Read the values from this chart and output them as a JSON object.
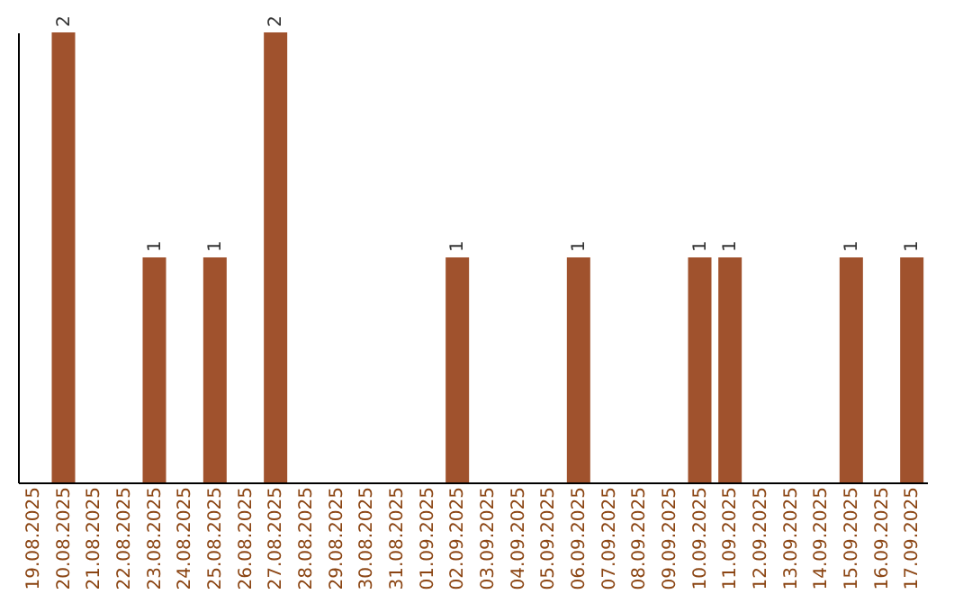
{
  "chart_data": {
    "type": "bar",
    "categories": [
      "19.08.2025",
      "20.08.2025",
      "21.08.2025",
      "22.08.2025",
      "23.08.2025",
      "24.08.2025",
      "25.08.2025",
      "26.08.2025",
      "27.08.2025",
      "28.08.2025",
      "29.08.2025",
      "30.08.2025",
      "31.08.2025",
      "01.09.2025",
      "02.09.2025",
      "03.09.2025",
      "04.09.2025",
      "05.09.2025",
      "06.09.2025",
      "07.09.2025",
      "08.09.2025",
      "09.09.2025",
      "10.09.2025",
      "11.09.2025",
      "12.09.2025",
      "13.09.2025",
      "14.09.2025",
      "15.09.2025",
      "16.09.2025",
      "17.09.2025"
    ],
    "values": [
      0,
      2,
      0,
      0,
      1,
      0,
      1,
      0,
      2,
      0,
      0,
      0,
      0,
      0,
      1,
      0,
      0,
      0,
      1,
      0,
      0,
      0,
      1,
      1,
      0,
      0,
      0,
      1,
      0,
      1
    ],
    "value_labels": [
      null,
      "2",
      null,
      null,
      "1",
      null,
      "1",
      null,
      "2",
      null,
      null,
      null,
      null,
      null,
      "1",
      null,
      null,
      null,
      "1",
      null,
      null,
      null,
      "1",
      "1",
      null,
      null,
      null,
      "1",
      null,
      "1"
    ],
    "color": "#a0522d",
    "tick_labels": "x",
    "grid": false
  }
}
